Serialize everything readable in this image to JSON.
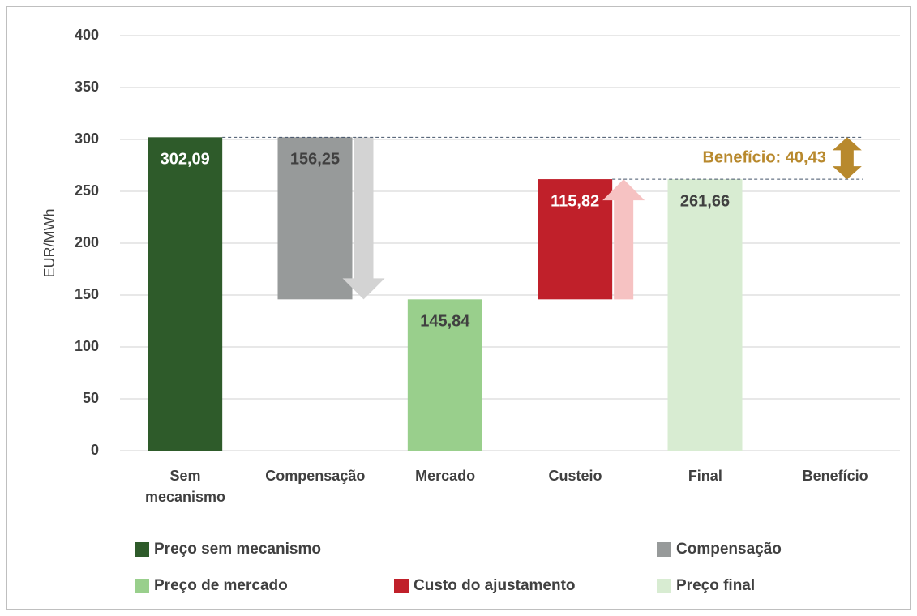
{
  "chart_data": {
    "type": "waterfall",
    "ylabel": "EUR/MWh",
    "categories": [
      "Sem mecanismo",
      "Compensação",
      "Mercado",
      "Custeio",
      "Final",
      "Benefício"
    ],
    "measure": [
      "absolute",
      "decrease",
      "absolute",
      "increase",
      "absolute",
      null
    ],
    "series": [
      {
        "name": "Preço sem mecanismo",
        "color": "#2e5b2a",
        "values": [
          302.09,
          null,
          null,
          null,
          null,
          null
        ],
        "value_labels": [
          "302,09",
          null,
          null,
          null,
          null,
          null
        ]
      },
      {
        "name": "Compensação",
        "color": "#979a9a",
        "values": [
          null,
          156.25,
          null,
          null,
          null,
          null
        ],
        "value_labels": [
          null,
          "156,25",
          null,
          null,
          null,
          null
        ]
      },
      {
        "name": "Preço de mercado",
        "color": "#99cf8c",
        "values": [
          null,
          null,
          145.84,
          null,
          null,
          null
        ],
        "value_labels": [
          null,
          null,
          "145,84",
          null,
          null,
          null
        ]
      },
      {
        "name": "Custo do ajustamento",
        "color": "#c0202a",
        "values": [
          null,
          null,
          null,
          115.82,
          null,
          null
        ],
        "value_labels": [
          null,
          null,
          null,
          "115,82",
          null,
          null
        ]
      },
      {
        "name": "Preço final",
        "color": "#d8ecd2",
        "values": [
          null,
          null,
          null,
          null,
          261.66,
          null
        ],
        "value_labels": [
          null,
          null,
          null,
          null,
          "261,66",
          null
        ]
      }
    ],
    "annotation": {
      "text": "Benefício: 40,43",
      "value": 40.43,
      "color": "#b8892d"
    },
    "ylim": [
      0,
      400
    ],
    "yticks": [
      0,
      50,
      100,
      150,
      200,
      250,
      300,
      350,
      400
    ],
    "grid": true
  }
}
